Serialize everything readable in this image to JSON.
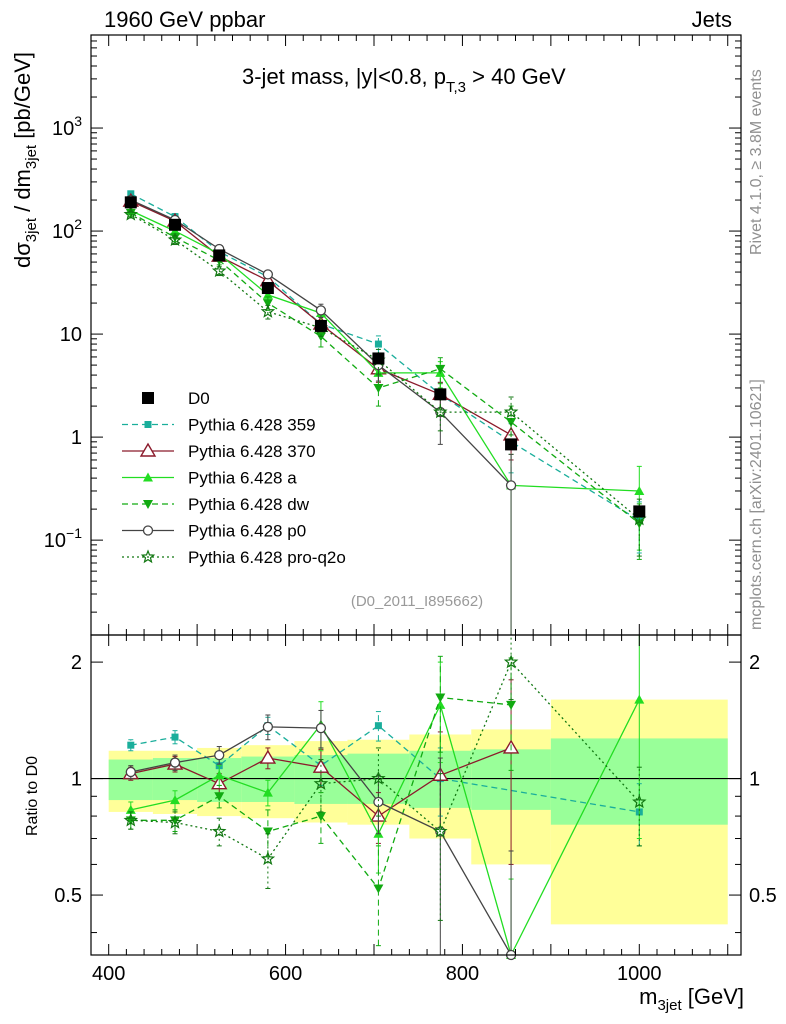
{
  "header": {
    "left": "1960 GeV ppbar",
    "right": "Jets"
  },
  "side_labels": {
    "rivet": "Rivet 4.1.0, ≥ 3.8M events",
    "mcplots": "mcplots.cern.ch [arXiv:2401.10621]"
  },
  "colors": {
    "band_inner": "#99ff99",
    "band_outer": "#ffff99",
    "D0": "#000000",
    "359": "#1aae9b",
    "370": "#8b1a2b",
    "a": "#22dd22",
    "dw": "#11aa11",
    "p0": "#444444",
    "pro-q2o": "#117711"
  },
  "chart_data": [
    {
      "type": "line",
      "title": "3-jet mass, |y|<0.8, p_T,3 > 40 GeV",
      "title_parts": {
        "a": "3-jet mass, |y|<0.8, p",
        "sub": "T,3",
        "b": " > 40 GeV"
      },
      "ylabel_parts": {
        "a": "dσ",
        "sub1": "3jet",
        "b": " / dm",
        "sub2": "3jet",
        "c": " [pb/GeV]"
      },
      "yscale": "log",
      "ylim": [
        0.012,
        8000
      ],
      "xlim": [
        380,
        1115
      ],
      "yticks": [
        {
          "v": 0.1,
          "base": "10",
          "sup": "−1"
        },
        {
          "v": 1,
          "text": "1"
        },
        {
          "v": 10,
          "text": "10"
        },
        {
          "v": 100,
          "base": "10",
          "sup": "2"
        },
        {
          "v": 1000,
          "base": "10",
          "sup": "3"
        }
      ],
      "watermark": "(D0_2011_I895662)",
      "x": [
        425,
        475,
        525,
        580,
        640,
        705,
        775,
        855,
        1000
      ],
      "xbins": [
        [
          400,
          450
        ],
        [
          450,
          500
        ],
        [
          500,
          550
        ],
        [
          550,
          610
        ],
        [
          610,
          670
        ],
        [
          670,
          740
        ],
        [
          740,
          810
        ],
        [
          810,
          900
        ],
        [
          900,
          1100
        ]
      ],
      "series": [
        {
          "name": "D0",
          "legend": "D0",
          "key": "D0",
          "marker": "square",
          "dash": "none",
          "values": [
            190,
            115,
            58,
            28,
            12,
            5.8,
            2.6,
            0.85,
            0.19
          ]
        },
        {
          "name": "Pythia 6.428 359",
          "legend": "Pythia 6.428 359",
          "key": "359",
          "marker": "smallsquare",
          "dash": "6,4",
          "values": [
            230,
            138,
            63,
            36,
            12.5,
            8.0,
            2.6,
            0.9,
            0.155
          ],
          "err": [
            15,
            10,
            5,
            3,
            2,
            1.6,
            0.8,
            0.45,
            0.08
          ]
        },
        {
          "name": "Pythia 6.428 370",
          "legend": "Pythia 6.428 370",
          "key": "370",
          "marker": "opentriangle",
          "dash": "none",
          "values": [
            195,
            125,
            57,
            33,
            12.5,
            4.6,
            2.6,
            1.05,
            null
          ],
          "err": [
            14,
            10,
            5,
            3,
            2,
            1.2,
            0.8,
            0.45,
            null
          ]
        },
        {
          "name": "Pythia 6.428 a",
          "legend": "Pythia 6.428 a",
          "key": "a",
          "marker": "triangle",
          "dash": "none",
          "values": [
            158,
            100,
            60,
            24,
            16,
            4.2,
            4.2,
            0.34,
            0.3
          ],
          "err": [
            12,
            9,
            5,
            3,
            2.5,
            1.2,
            1.2,
            0.34,
            0.22
          ]
        },
        {
          "name": "Pythia 6.428 dw",
          "legend": "Pythia 6.428 dw",
          "key": "dw",
          "marker": "invtriangle",
          "dash": "6,4",
          "values": [
            150,
            87,
            52,
            20,
            9.5,
            3.0,
            4.6,
            1.4,
            0.145
          ],
          "err": [
            12,
            8,
            5,
            3,
            2,
            1.0,
            1.3,
            0.6,
            0.08
          ]
        },
        {
          "name": "Pythia 6.428 p0",
          "legend": "Pythia 6.428 p0",
          "key": "p0",
          "marker": "opencircle",
          "dash": "none",
          "values": [
            200,
            128,
            67,
            38,
            17,
            5.0,
            1.75,
            0.34,
            null
          ],
          "err": [
            14,
            10,
            5,
            3,
            2.5,
            1.5,
            0.9,
            0.34,
            null
          ]
        },
        {
          "name": "Pythia 6.428 pro-q2o",
          "legend": "Pythia 6.428 pro-q2o",
          "key": "pro-q2o",
          "marker": "openstar",
          "dash": "2,3",
          "values": [
            145,
            82,
            41,
            16.5,
            11.5,
            5.6,
            1.75,
            1.75,
            0.16
          ],
          "err": [
            11,
            8,
            4,
            2.5,
            2,
            1.5,
            0.6,
            0.7,
            0.09
          ]
        }
      ]
    },
    {
      "type": "line",
      "ylabel": "Ratio to D0",
      "xlabel_parts": {
        "a": "m",
        "sub": "3jet",
        "b": " [GeV]"
      },
      "xlim": [
        380,
        1115
      ],
      "ylim": [
        0.35,
        2.35
      ],
      "xticks": [
        400,
        600,
        800,
        1000
      ],
      "yticks": [
        {
          "v": 0.5,
          "text": "0.5"
        },
        {
          "v": 1,
          "text": "1"
        },
        {
          "v": 2,
          "text": "2"
        }
      ],
      "bands": [
        {
          "x": [
            400,
            450
          ],
          "inner": [
            0.88,
            1.12
          ],
          "outer": [
            0.82,
            1.18
          ]
        },
        {
          "x": [
            450,
            500
          ],
          "inner": [
            0.88,
            1.13
          ],
          "outer": [
            0.81,
            1.18
          ]
        },
        {
          "x": [
            500,
            550
          ],
          "inner": [
            0.87,
            1.13
          ],
          "outer": [
            0.8,
            1.2
          ]
        },
        {
          "x": [
            550,
            610
          ],
          "inner": [
            0.87,
            1.14
          ],
          "outer": [
            0.79,
            1.22
          ]
        },
        {
          "x": [
            610,
            670
          ],
          "inner": [
            0.86,
            1.15
          ],
          "outer": [
            0.77,
            1.25
          ]
        },
        {
          "x": [
            670,
            740
          ],
          "inner": [
            0.86,
            1.16
          ],
          "outer": [
            0.76,
            1.26
          ]
        },
        {
          "x": [
            740,
            810
          ],
          "inner": [
            0.84,
            1.18
          ],
          "outer": [
            0.7,
            1.3
          ]
        },
        {
          "x": [
            810,
            900
          ],
          "inner": [
            0.83,
            1.19
          ],
          "outer": [
            0.6,
            1.34
          ]
        },
        {
          "x": [
            900,
            1100
          ],
          "inner": [
            0.76,
            1.27
          ],
          "outer": [
            0.42,
            1.6
          ]
        }
      ],
      "series": [
        {
          "key": "359",
          "marker": "smallsquare",
          "dash": "6,4",
          "values": [
            1.22,
            1.28,
            1.08,
            1.37,
            1.08,
            1.37,
            1.0,
            null,
            0.82
          ],
          "err": [
            0.04,
            0.05,
            0.06,
            0.07,
            0.12,
            0.12,
            0.2,
            null,
            0.15
          ]
        },
        {
          "key": "370",
          "marker": "opentriangle",
          "dash": "none",
          "values": [
            1.03,
            1.09,
            0.97,
            1.13,
            1.07,
            0.8,
            1.02,
            1.2,
            null
          ],
          "err": [
            0.04,
            0.05,
            0.06,
            0.07,
            0.12,
            0.12,
            0.3,
            0.6,
            null
          ]
        },
        {
          "key": "a",
          "marker": "triangle",
          "dash": "none",
          "values": [
            0.83,
            0.88,
            1.02,
            0.92,
            1.38,
            0.72,
            1.55,
            0.35,
            1.6
          ],
          "err": [
            0.04,
            0.05,
            0.06,
            0.07,
            0.2,
            0.15,
            0.45,
            0.2,
            0.9
          ]
        },
        {
          "key": "dw",
          "marker": "invtriangle",
          "dash": "6,4",
          "values": [
            0.78,
            0.78,
            0.9,
            0.73,
            0.8,
            0.52,
            1.62,
            1.55,
            null
          ],
          "err": [
            0.04,
            0.05,
            0.06,
            0.1,
            0.12,
            0.15,
            0.45,
            0.5,
            null
          ]
        },
        {
          "key": "p0",
          "marker": "opencircle",
          "dash": "none",
          "values": [
            1.04,
            1.1,
            1.15,
            1.36,
            1.35,
            0.87,
            0.73,
            0.35,
            null
          ],
          "err": [
            0.04,
            0.05,
            0.06,
            0.1,
            0.15,
            0.15,
            0.4,
            0.3,
            null
          ]
        },
        {
          "key": "pro-q2o",
          "marker": "openstar",
          "dash": "2,3",
          "values": [
            0.78,
            0.77,
            0.73,
            0.62,
            0.97,
            1.0,
            0.73,
            2.0,
            0.87
          ],
          "err": [
            0.04,
            0.05,
            0.06,
            0.1,
            0.15,
            0.2,
            0.3,
            0.4,
            0.2
          ]
        }
      ]
    }
  ]
}
